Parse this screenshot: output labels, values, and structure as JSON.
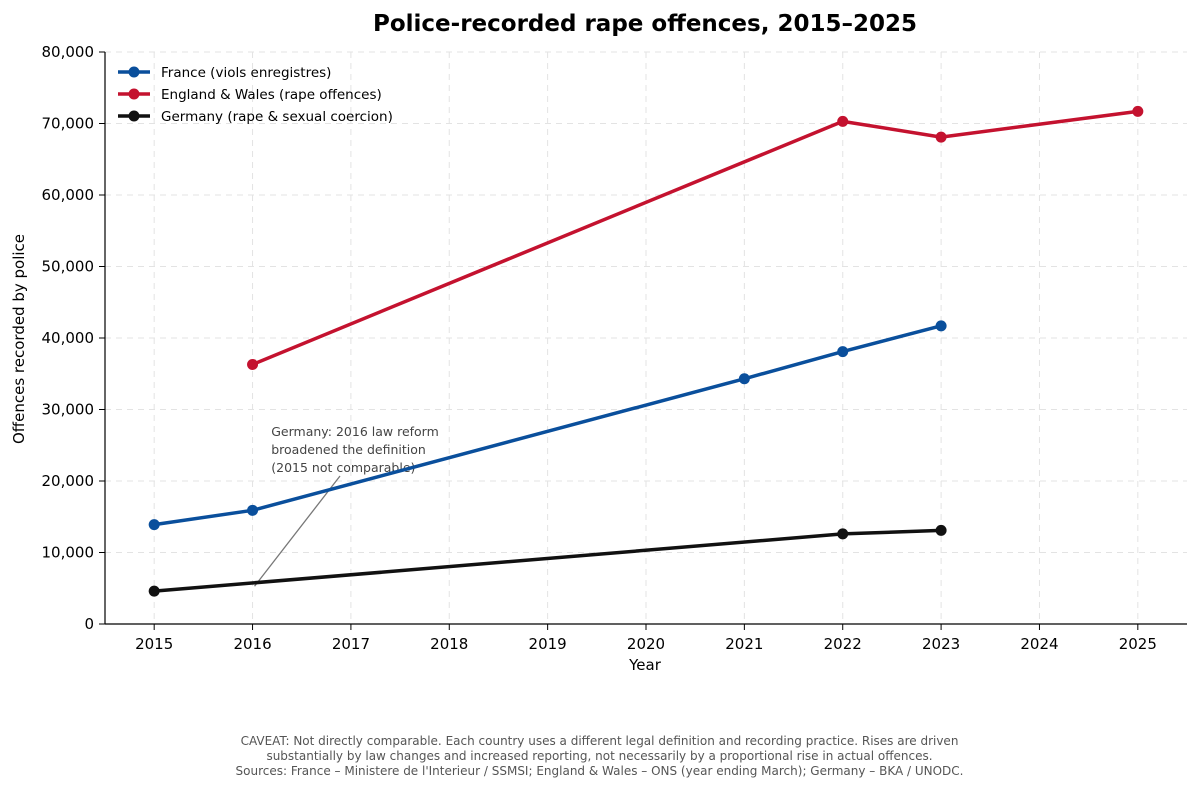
{
  "chart_data": {
    "type": "line",
    "title": "Police-recorded rape offences, 2015–2025",
    "xlabel": "Year",
    "ylabel": "Offences recorded by police",
    "xlim": [
      2014.5,
      2025.5
    ],
    "ylim": [
      0,
      80000
    ],
    "xticks": [
      "2015",
      "2016",
      "2017",
      "2018",
      "2019",
      "2020",
      "2021",
      "2022",
      "2023",
      "2024",
      "2025"
    ],
    "yticks": [
      "0",
      "10,000",
      "20,000",
      "30,000",
      "40,000",
      "50,000",
      "60,000",
      "70,000",
      "80,000"
    ],
    "grid": true,
    "legend_position": "top-left",
    "series": [
      {
        "name": "France (viols enregistres)",
        "color": "#0a4f9c",
        "points": [
          [
            2015,
            13900
          ],
          [
            2016,
            15900
          ],
          [
            2021,
            34300
          ],
          [
            2022,
            38100
          ],
          [
            2023,
            41700
          ]
        ]
      },
      {
        "name": "England & Wales (rape offences)",
        "color": "#c4122f",
        "points": [
          [
            2016,
            36300
          ],
          [
            2022,
            70300
          ],
          [
            2023,
            68100
          ],
          [
            2025,
            71700
          ]
        ]
      },
      {
        "name": "Germany (rape & sexual coercion)",
        "color": "#111111",
        "points": [
          [
            2015,
            4600
          ],
          [
            2022,
            12600
          ],
          [
            2023,
            13100
          ]
        ]
      }
    ],
    "annotation": {
      "lines": [
        "Germany: 2016 law reform",
        "broadened the definition",
        "(2015 not comparable)"
      ],
      "target": [
        2016,
        5000
      ]
    }
  },
  "footer": {
    "lines": [
      "CAVEAT: Not directly comparable. Each country uses a different legal definition and recording practice. Rises are driven",
      "substantially by law changes and increased reporting, not necessarily by a proportional rise in actual offences.",
      "Sources: France – Ministere de l'Interieur / SSMSI;  England & Wales – ONS (year ending March);  Germany – BKA / UNODC."
    ]
  }
}
